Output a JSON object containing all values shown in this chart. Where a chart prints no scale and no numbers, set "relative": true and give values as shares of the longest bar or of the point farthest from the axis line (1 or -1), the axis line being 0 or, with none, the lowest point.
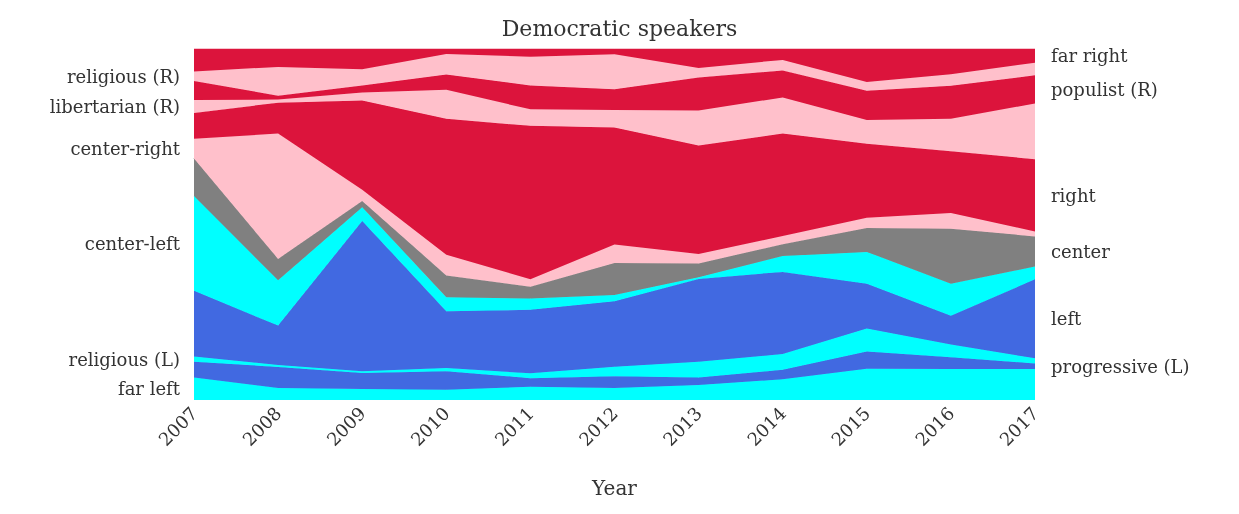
{
  "chart_data": {
    "type": "area",
    "title": "Democratic speakers",
    "xlabel": "Year",
    "relative": true,
    "stacked": true,
    "grid": false,
    "legend": false,
    "categories": [
      "2007",
      "2008",
      "2009",
      "2010",
      "2011",
      "2012",
      "2013",
      "2014",
      "2015",
      "2016",
      "2017"
    ],
    "series": [
      {
        "name": "far left",
        "color": "#00ffff",
        "values": [
          0.064,
          0.034,
          0.031,
          0.029,
          0.038,
          0.034,
          0.043,
          0.059,
          0.089,
          0.088,
          0.088
        ]
      },
      {
        "name": "progressive (L)",
        "color": "#4169e1",
        "values": [
          0.045,
          0.06,
          0.046,
          0.053,
          0.024,
          0.034,
          0.021,
          0.027,
          0.049,
          0.034,
          0.016
        ]
      },
      {
        "name": "religious (L)",
        "color": "#00ffff",
        "values": [
          0.015,
          0.006,
          0.005,
          0.009,
          0.014,
          0.027,
          0.045,
          0.045,
          0.066,
          0.036,
          0.015
        ]
      },
      {
        "name": "left",
        "color": "#4169e1",
        "values": [
          0.187,
          0.112,
          0.428,
          0.162,
          0.181,
          0.186,
          0.236,
          0.234,
          0.127,
          0.082,
          0.225
        ]
      },
      {
        "name": "center-left",
        "color": "#00ffff",
        "values": [
          0.27,
          0.129,
          0.039,
          0.04,
          0.032,
          0.018,
          0.005,
          0.045,
          0.091,
          0.091,
          0.036
        ]
      },
      {
        "name": "center",
        "color": "#808080",
        "values": [
          0.107,
          0.061,
          0.018,
          0.062,
          0.034,
          0.091,
          0.039,
          0.034,
          0.068,
          0.157,
          0.086
        ]
      },
      {
        "name": "center-right",
        "color": "#ffc0cb",
        "values": [
          0.056,
          0.357,
          0.032,
          0.059,
          0.021,
          0.053,
          0.027,
          0.023,
          0.029,
          0.045,
          0.014
        ]
      },
      {
        "name": "right",
        "color": "#dc143c",
        "values": [
          0.074,
          0.088,
          0.254,
          0.387,
          0.437,
          0.333,
          0.309,
          0.292,
          0.211,
          0.176,
          0.206
        ]
      },
      {
        "name": "libertarian (R)",
        "color": "#ffc0cb",
        "values": [
          0.037,
          0.009,
          0.023,
          0.083,
          0.047,
          0.05,
          0.1,
          0.103,
          0.068,
          0.092,
          0.159
        ]
      },
      {
        "name": "populist (R)",
        "color": "#dc143c",
        "values": [
          0.054,
          0.011,
          0.02,
          0.043,
          0.068,
          0.059,
          0.094,
          0.077,
          0.083,
          0.094,
          0.08
        ]
      },
      {
        "name": "religious (R)",
        "color": "#ffc0cb",
        "values": [
          0.027,
          0.082,
          0.046,
          0.059,
          0.082,
          0.1,
          0.027,
          0.03,
          0.025,
          0.033,
          0.036
        ]
      },
      {
        "name": "far right",
        "color": "#dc143c",
        "values": [
          0.064,
          0.051,
          0.058,
          0.014,
          0.022,
          0.015,
          0.054,
          0.031,
          0.094,
          0.072,
          0.039
        ]
      }
    ]
  }
}
